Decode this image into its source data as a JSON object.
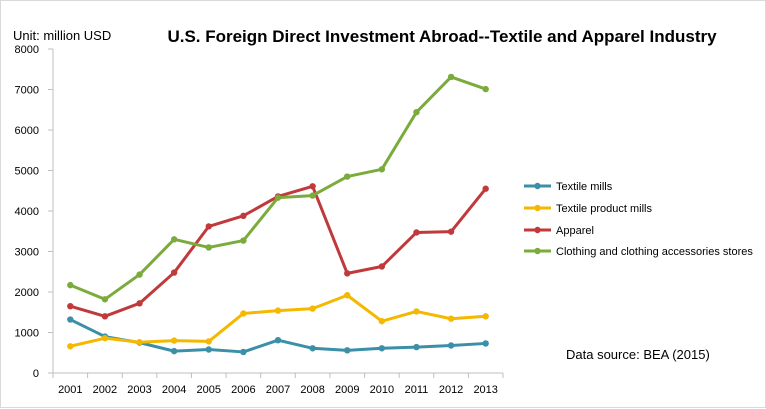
{
  "chart_data": {
    "type": "line",
    "unit_label": "Unit: million USD",
    "title": "U.S. Foreign Direct Investment Abroad--Textile and Apparel Industry",
    "source_note": "Data source: BEA (2015)",
    "categories": [
      "2001",
      "2002",
      "2003",
      "2004",
      "2005",
      "2006",
      "2007",
      "2008",
      "2009",
      "2010",
      "2011",
      "2012",
      "2013"
    ],
    "ylim": [
      0,
      8000
    ],
    "yticks": [
      0,
      1000,
      2000,
      3000,
      4000,
      5000,
      6000,
      7000,
      8000
    ],
    "grid": false,
    "legend_position": "right",
    "series": [
      {
        "name": "Textile mills",
        "color": "#3c8fa8",
        "values": [
          1320,
          900,
          750,
          540,
          580,
          520,
          810,
          610,
          560,
          610,
          640,
          680,
          730
        ]
      },
      {
        "name": "Textile product mills",
        "color": "#f5b800",
        "values": [
          660,
          860,
          760,
          800,
          780,
          1470,
          1540,
          1590,
          1920,
          1280,
          1520,
          1340,
          1400
        ]
      },
      {
        "name": "Apparel",
        "color": "#c0393b",
        "values": [
          1650,
          1400,
          1720,
          2480,
          3620,
          3880,
          4360,
          4610,
          2460,
          2630,
          3470,
          3490,
          4550
        ]
      },
      {
        "name": "Clothing and clothing accessories stores",
        "color": "#7aab3b",
        "values": [
          2170,
          1820,
          2430,
          3300,
          3100,
          3270,
          4330,
          4380,
          4850,
          5030,
          6440,
          7310,
          7010
        ]
      }
    ]
  }
}
